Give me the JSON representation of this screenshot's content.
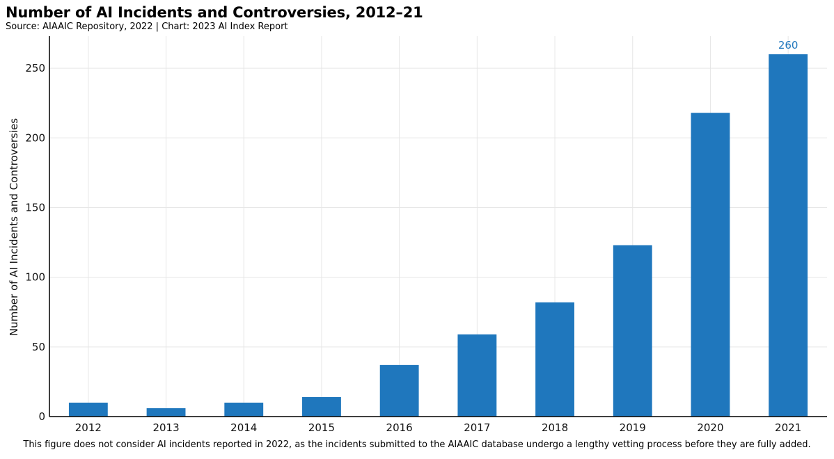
{
  "header": {
    "title": "Number of AI Incidents and Controversies, 2012–21",
    "subtitle": "Source: AIAAIC Repository, 2022 | Chart: 2023 AI Index Report"
  },
  "footnote": "This figure does not consider AI incidents reported in 2022, as the incidents submitted to the AIAAIC database undergo a lengthy vetting process before they are fully added.",
  "colors": {
    "bar": "#1f77bd",
    "grid": "#e6e6e6",
    "axis": "#000000",
    "data_label": "#1f77bd"
  },
  "chart_data": {
    "type": "bar",
    "title": "Number of AI Incidents and Controversies, 2012–21",
    "xlabel": "",
    "ylabel": "Number of AI Incidents and Controversies",
    "categories": [
      "2012",
      "2013",
      "2014",
      "2015",
      "2016",
      "2017",
      "2018",
      "2019",
      "2020",
      "2021"
    ],
    "values": [
      10,
      6,
      10,
      14,
      37,
      59,
      82,
      123,
      218,
      260
    ],
    "ylim": [
      0,
      273
    ],
    "yticks": [
      0,
      50,
      100,
      150,
      200,
      250
    ],
    "grid": true,
    "data_labels": [
      {
        "index": 9,
        "text": "260"
      }
    ]
  }
}
